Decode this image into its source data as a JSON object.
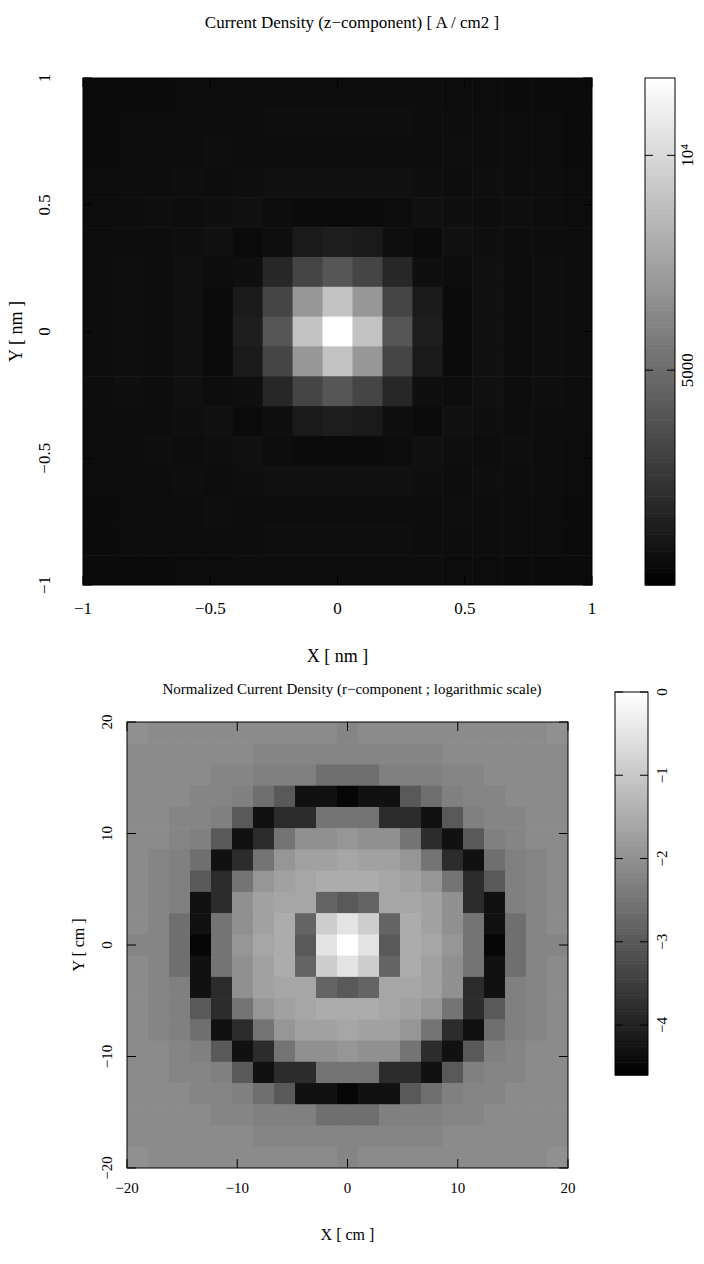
{
  "chart_data": [
    {
      "type": "heatmap",
      "title": "Current Density (z−component) [ A / cm2 ]",
      "x_label": "X [ nm ]",
      "y_label": "Y [ nm ]",
      "xlim": [
        -1,
        1
      ],
      "ylim": [
        -1,
        1
      ],
      "xticks": [
        {
          "value": -1,
          "label": "−1"
        },
        {
          "value": -0.5,
          "label": "−0.5"
        },
        0,
        0.5,
        1
      ],
      "yticks": [
        {
          "value": -1,
          "label": "−1"
        },
        {
          "value": -0.5,
          "label": "−0.5"
        },
        0,
        0.5,
        1
      ],
      "color_range": [
        0,
        11800
      ],
      "color_ticks": [
        5000,
        {
          "value": 10000,
          "label": "10⁴"
        }
      ],
      "cells": [
        [
          500,
          500,
          500,
          550,
          550,
          600,
          600,
          600,
          600,
          600,
          600,
          600,
          550,
          550,
          500,
          500,
          500
        ],
        [
          500,
          550,
          550,
          600,
          600,
          600,
          700,
          700,
          700,
          700,
          700,
          600,
          600,
          600,
          550,
          550,
          500
        ],
        [
          500,
          550,
          600,
          600,
          700,
          600,
          600,
          600,
          600,
          600,
          600,
          600,
          700,
          600,
          600,
          550,
          500
        ],
        [
          550,
          600,
          600,
          700,
          600,
          700,
          800,
          800,
          800,
          800,
          800,
          700,
          600,
          700,
          600,
          600,
          550
        ],
        [
          550,
          600,
          700,
          600,
          700,
          800,
          600,
          500,
          500,
          500,
          600,
          800,
          700,
          600,
          700,
          600,
          550
        ],
        [
          600,
          600,
          600,
          700,
          800,
          500,
          700,
          1200,
          1400,
          1200,
          700,
          500,
          800,
          700,
          600,
          600,
          600
        ],
        [
          600,
          700,
          600,
          800,
          600,
          700,
          1800,
          3200,
          4000,
          3200,
          1800,
          700,
          600,
          800,
          600,
          700,
          600
        ],
        [
          600,
          700,
          600,
          800,
          500,
          1200,
          3200,
          7000,
          9000,
          7000,
          3200,
          1200,
          500,
          800,
          600,
          700,
          600
        ],
        [
          600,
          700,
          600,
          800,
          500,
          1400,
          4000,
          9000,
          12000,
          9000,
          4000,
          1400,
          500,
          800,
          600,
          700,
          600
        ],
        [
          600,
          700,
          600,
          800,
          500,
          1200,
          3200,
          7000,
          9000,
          7000,
          3200,
          1200,
          500,
          800,
          600,
          700,
          600
        ],
        [
          600,
          700,
          600,
          800,
          600,
          700,
          1800,
          3200,
          4000,
          3200,
          1800,
          700,
          600,
          800,
          600,
          700,
          600
        ],
        [
          600,
          600,
          600,
          700,
          800,
          500,
          700,
          1200,
          1400,
          1200,
          700,
          500,
          800,
          700,
          600,
          600,
          600
        ],
        [
          550,
          600,
          700,
          600,
          700,
          800,
          600,
          500,
          500,
          500,
          600,
          800,
          700,
          600,
          700,
          600,
          550
        ],
        [
          550,
          600,
          600,
          700,
          600,
          700,
          800,
          800,
          800,
          800,
          800,
          700,
          600,
          700,
          600,
          600,
          550
        ],
        [
          500,
          550,
          600,
          600,
          700,
          600,
          600,
          600,
          600,
          600,
          600,
          600,
          700,
          600,
          600,
          550,
          500
        ],
        [
          500,
          550,
          550,
          600,
          600,
          600,
          700,
          700,
          700,
          700,
          700,
          600,
          600,
          600,
          550,
          550,
          500
        ],
        [
          500,
          500,
          500,
          550,
          550,
          600,
          600,
          600,
          600,
          600,
          600,
          600,
          550,
          550,
          500,
          500,
          500
        ]
      ]
    },
    {
      "type": "heatmap",
      "title": "Normalized Current Density (r−component ; logarithmic scale)",
      "x_label": "X [ cm ]",
      "y_label": "Y [ cm ]",
      "xlim": [
        -20,
        20
      ],
      "ylim": [
        -20,
        20
      ],
      "xticks": [
        {
          "value": -20,
          "label": "−20"
        },
        {
          "value": -10,
          "label": "−10"
        },
        0,
        10,
        20
      ],
      "yticks": [
        {
          "value": -20,
          "label": "−20"
        },
        {
          "value": -10,
          "label": "−10"
        },
        0,
        10,
        20
      ],
      "color_range": [
        -4.6,
        0
      ],
      "color_ticks": [
        {
          "value": -4,
          "label": "−4"
        },
        {
          "value": -3,
          "label": "−3"
        },
        {
          "value": -2,
          "label": "−2"
        },
        {
          "value": -1,
          "label": "−1"
        },
        0
      ],
      "cells": [
        [
          -2.0,
          -2.1,
          -2.1,
          -2.1,
          -2.1,
          -2.1,
          -2.1,
          -2.1,
          -2.1,
          -2.1,
          -2.2,
          -2.1,
          -2.1,
          -2.1,
          -2.1,
          -2.1,
          -2.1,
          -2.1,
          -2.1,
          -2.1,
          -2.0
        ],
        [
          -2.1,
          -2.1,
          -2.1,
          -2.1,
          -2.1,
          -2.1,
          -2.2,
          -2.2,
          -2.2,
          -2.2,
          -2.2,
          -2.2,
          -2.2,
          -2.2,
          -2.2,
          -2.1,
          -2.1,
          -2.1,
          -2.1,
          -2.1,
          -2.1
        ],
        [
          -2.1,
          -2.1,
          -2.1,
          -2.1,
          -2.2,
          -2.2,
          -2.3,
          -2.3,
          -2.3,
          -2.6,
          -2.6,
          -2.6,
          -2.3,
          -2.3,
          -2.3,
          -2.2,
          -2.2,
          -2.1,
          -2.1,
          -2.1,
          -2.1
        ],
        [
          -2.1,
          -2.1,
          -2.1,
          -2.2,
          -2.2,
          -2.3,
          -2.6,
          -3.0,
          -4.3,
          -4.3,
          -4.5,
          -4.3,
          -4.3,
          -3.0,
          -2.6,
          -2.3,
          -2.2,
          -2.2,
          -2.1,
          -2.1,
          -2.1
        ],
        [
          -2.1,
          -2.1,
          -2.2,
          -2.2,
          -2.3,
          -3.0,
          -4.3,
          -3.8,
          -3.8,
          -2.5,
          -2.5,
          -2.5,
          -3.8,
          -3.8,
          -4.3,
          -3.0,
          -2.3,
          -2.2,
          -2.2,
          -2.1,
          -2.1
        ],
        [
          -2.1,
          -2.1,
          -2.2,
          -2.3,
          -3.0,
          -4.3,
          -3.8,
          -2.5,
          -2.0,
          -2.0,
          -1.9,
          -2.0,
          -2.0,
          -2.5,
          -3.8,
          -4.3,
          -3.0,
          -2.3,
          -2.2,
          -2.1,
          -2.1
        ],
        [
          -2.1,
          -2.2,
          -2.3,
          -2.6,
          -4.3,
          -3.8,
          -2.5,
          -1.9,
          -1.7,
          -1.7,
          -1.6,
          -1.7,
          -1.7,
          -1.9,
          -2.5,
          -3.8,
          -4.3,
          -2.6,
          -2.3,
          -2.2,
          -2.1
        ],
        [
          -2.1,
          -2.2,
          -2.3,
          -3.0,
          -3.8,
          -2.5,
          -1.9,
          -1.7,
          -1.6,
          -1.5,
          -1.5,
          -1.5,
          -1.6,
          -1.7,
          -1.9,
          -2.5,
          -3.8,
          -3.0,
          -2.3,
          -2.2,
          -2.1
        ],
        [
          -2.1,
          -2.2,
          -2.3,
          -4.3,
          -3.8,
          -2.0,
          -1.7,
          -1.6,
          -1.6,
          -2.8,
          -3.0,
          -2.8,
          -1.6,
          -1.6,
          -1.7,
          -2.0,
          -3.8,
          -4.3,
          -2.3,
          -2.2,
          -2.1
        ],
        [
          -2.1,
          -2.2,
          -2.6,
          -4.3,
          -2.5,
          -2.0,
          -1.7,
          -1.5,
          -2.8,
          -0.9,
          -0.5,
          -0.9,
          -2.8,
          -1.5,
          -1.7,
          -2.0,
          -2.5,
          -4.3,
          -2.6,
          -2.2,
          -2.1
        ],
        [
          -2.2,
          -2.2,
          -2.6,
          -4.5,
          -2.5,
          -1.9,
          -1.6,
          -1.5,
          -3.0,
          -0.5,
          0,
          -0.5,
          -3.0,
          -1.5,
          -1.6,
          -1.9,
          -2.5,
          -4.5,
          -2.6,
          -2.2,
          -2.2
        ],
        [
          -2.1,
          -2.2,
          -2.6,
          -4.3,
          -2.5,
          -2.0,
          -1.7,
          -1.5,
          -2.8,
          -0.9,
          -0.5,
          -0.9,
          -2.8,
          -1.5,
          -1.7,
          -2.0,
          -2.5,
          -4.3,
          -2.6,
          -2.2,
          -2.1
        ],
        [
          -2.1,
          -2.2,
          -2.3,
          -4.3,
          -3.8,
          -2.0,
          -1.7,
          -1.6,
          -1.6,
          -2.8,
          -3.0,
          -2.8,
          -1.6,
          -1.6,
          -1.7,
          -2.0,
          -3.8,
          -4.3,
          -2.3,
          -2.2,
          -2.1
        ],
        [
          -2.1,
          -2.2,
          -2.3,
          -3.0,
          -3.8,
          -2.5,
          -1.9,
          -1.7,
          -1.6,
          -1.5,
          -1.5,
          -1.5,
          -1.6,
          -1.7,
          -1.9,
          -2.5,
          -3.8,
          -3.0,
          -2.3,
          -2.2,
          -2.1
        ],
        [
          -2.1,
          -2.2,
          -2.3,
          -2.6,
          -4.3,
          -3.8,
          -2.5,
          -1.9,
          -1.7,
          -1.7,
          -1.6,
          -1.7,
          -1.7,
          -1.9,
          -2.5,
          -3.8,
          -4.3,
          -2.6,
          -2.3,
          -2.2,
          -2.1
        ],
        [
          -2.1,
          -2.1,
          -2.2,
          -2.3,
          -3.0,
          -4.3,
          -3.8,
          -2.5,
          -2.0,
          -2.0,
          -1.9,
          -2.0,
          -2.0,
          -2.5,
          -3.8,
          -4.3,
          -3.0,
          -2.3,
          -2.2,
          -2.1,
          -2.1
        ],
        [
          -2.1,
          -2.1,
          -2.2,
          -2.2,
          -2.3,
          -3.0,
          -4.3,
          -3.8,
          -3.8,
          -2.5,
          -2.5,
          -2.5,
          -3.8,
          -3.8,
          -4.3,
          -3.0,
          -2.3,
          -2.2,
          -2.2,
          -2.1,
          -2.1
        ],
        [
          -2.1,
          -2.1,
          -2.1,
          -2.2,
          -2.2,
          -2.3,
          -2.6,
          -3.0,
          -4.3,
          -4.3,
          -4.5,
          -4.3,
          -4.3,
          -3.0,
          -2.6,
          -2.3,
          -2.2,
          -2.2,
          -2.1,
          -2.1,
          -2.1
        ],
        [
          -2.1,
          -2.1,
          -2.1,
          -2.1,
          -2.2,
          -2.2,
          -2.3,
          -2.3,
          -2.3,
          -2.6,
          -2.6,
          -2.6,
          -2.3,
          -2.3,
          -2.3,
          -2.2,
          -2.2,
          -2.1,
          -2.1,
          -2.1,
          -2.1
        ],
        [
          -2.1,
          -2.1,
          -2.1,
          -2.1,
          -2.1,
          -2.1,
          -2.2,
          -2.2,
          -2.2,
          -2.2,
          -2.2,
          -2.2,
          -2.2,
          -2.2,
          -2.2,
          -2.1,
          -2.1,
          -2.1,
          -2.1,
          -2.1,
          -2.1
        ],
        [
          -2.0,
          -2.1,
          -2.1,
          -2.1,
          -2.1,
          -2.1,
          -2.1,
          -2.1,
          -2.1,
          -2.1,
          -2.2,
          -2.1,
          -2.1,
          -2.1,
          -2.1,
          -2.1,
          -2.1,
          -2.1,
          -2.1,
          -2.1,
          -2.0
        ]
      ]
    }
  ]
}
